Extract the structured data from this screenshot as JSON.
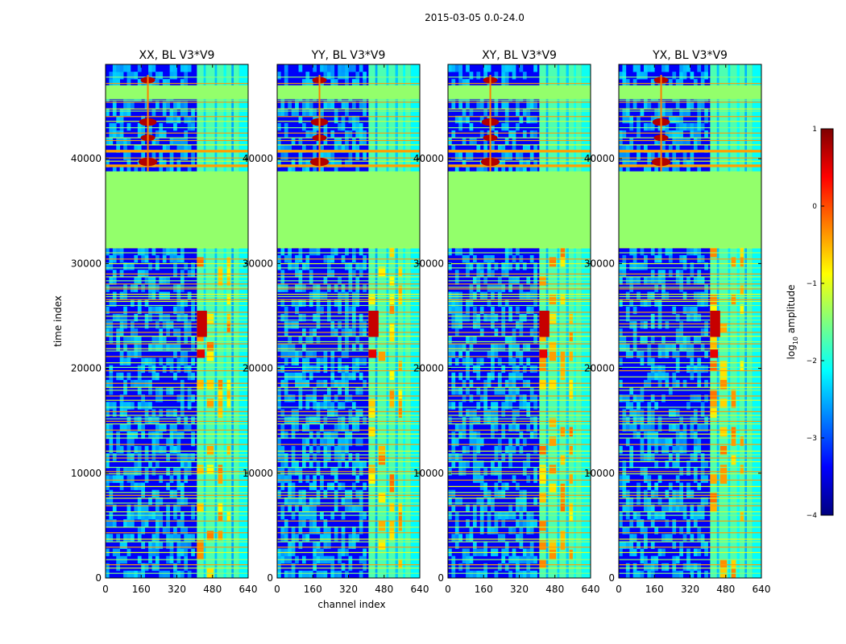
{
  "figure": {
    "suptitle": "2015-03-05 0.0-24.0"
  },
  "colorbar": {
    "label_main": "log",
    "label_sub": "10",
    "label_tail": " amplitude",
    "range": [
      -4,
      1
    ],
    "ticks": [
      1,
      0,
      -1,
      -2,
      -3,
      -4
    ],
    "tick_labels": [
      "1",
      "0",
      "−1",
      "−2",
      "−3",
      "−4"
    ],
    "colors": [
      "#00007f",
      "#0000ff",
      "#007fff",
      "#00ffff",
      "#7fff7f",
      "#ffff00",
      "#ff7f00",
      "#ff0000",
      "#7f0000"
    ]
  },
  "chart_data": [
    {
      "type": "heatmap",
      "title": "XX, BL V3*V9",
      "xlabel": "",
      "ylabel": "time index",
      "xlim": [
        0,
        640
      ],
      "ylim": [
        0,
        49000
      ],
      "xticks": [
        0,
        160,
        320,
        480,
        640
      ],
      "xtick_labels": [
        "0",
        "160",
        "320",
        "480",
        "640"
      ],
      "yticks": [
        0,
        10000,
        20000,
        30000,
        40000
      ],
      "ytick_labels": [
        "0",
        "10000",
        "20000",
        "30000",
        "40000"
      ],
      "flagged_time_range": [
        31500,
        38800
      ],
      "rfi_channel_range": [
        410,
        600
      ],
      "peak_channel": 190
    },
    {
      "type": "heatmap",
      "title": "YY, BL V3*V9",
      "xlabel": "channel index",
      "ylabel": "",
      "xlim": [
        0,
        640
      ],
      "ylim": [
        0,
        49000
      ],
      "xticks": [
        0,
        160,
        320,
        480,
        640
      ],
      "xtick_labels": [
        "0",
        "160",
        "320",
        "480",
        "640"
      ],
      "yticks": [
        0,
        10000,
        20000,
        30000,
        40000
      ],
      "ytick_labels": [
        "0",
        "10000",
        "20000",
        "30000",
        "40000"
      ],
      "flagged_time_range": [
        31500,
        38800
      ],
      "rfi_channel_range": [
        410,
        600
      ],
      "peak_channel": 190
    },
    {
      "type": "heatmap",
      "title": "XY, BL V3*V9",
      "xlabel": "",
      "ylabel": "",
      "xlim": [
        0,
        640
      ],
      "ylim": [
        0,
        49000
      ],
      "xticks": [
        0,
        160,
        320,
        480,
        640
      ],
      "xtick_labels": [
        "0",
        "160",
        "320",
        "480",
        "640"
      ],
      "yticks": [
        0,
        10000,
        20000,
        30000,
        40000
      ],
      "ytick_labels": [
        "0",
        "10000",
        "20000",
        "30000",
        "40000"
      ],
      "flagged_time_range": [
        31500,
        38800
      ],
      "rfi_channel_range": [
        410,
        600
      ],
      "peak_channel": 190
    },
    {
      "type": "heatmap",
      "title": "YX, BL V3*V9",
      "xlabel": "",
      "ylabel": "",
      "xlim": [
        0,
        640
      ],
      "ylim": [
        0,
        49000
      ],
      "xticks": [
        0,
        160,
        320,
        480,
        640
      ],
      "xtick_labels": [
        "0",
        "160",
        "320",
        "480",
        "640"
      ],
      "yticks": [
        0,
        10000,
        20000,
        30000,
        40000
      ],
      "ytick_labels": [
        "0",
        "10000",
        "20000",
        "30000",
        "40000"
      ],
      "flagged_time_range": [
        31500,
        38800
      ],
      "rfi_channel_range": [
        410,
        600
      ],
      "peak_channel": 190
    }
  ]
}
